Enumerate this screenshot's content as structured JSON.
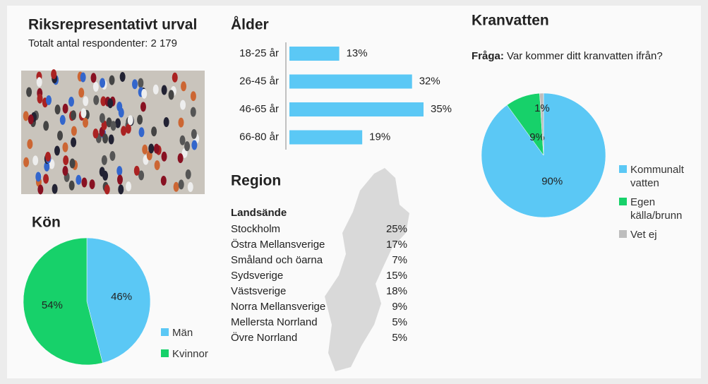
{
  "header": {
    "title": "Riksrepresentativt urval",
    "subtitle": "Totalt antal respondenter: 2 179"
  },
  "region": {
    "title": "Region",
    "column_title": "Landsände",
    "rows": [
      [
        "Stockholm",
        "25%"
      ],
      [
        "Östra Mellansverige",
        "17%"
      ],
      [
        "Småland och öarna",
        "7%"
      ],
      [
        "Sydsverige",
        "15%"
      ],
      [
        "Västsverige",
        "18%"
      ],
      [
        "Norra Mellansverige",
        "9%"
      ],
      [
        "Mellersta Norrland",
        "5%"
      ],
      [
        "Övre Norrland",
        "5%"
      ]
    ]
  },
  "chart_data": [
    {
      "type": "bar",
      "title": "Ålder",
      "categories": [
        "18-25 år",
        "26-45 år",
        "46-65 år",
        "66-80 år"
      ],
      "values": [
        13,
        32,
        35,
        19
      ],
      "value_labels": [
        "13%",
        "32%",
        "35%",
        "19%"
      ],
      "color": "#5bc8f5"
    },
    {
      "type": "pie",
      "title": "Kön",
      "categories": [
        "Män",
        "Kvinnor"
      ],
      "values": [
        46,
        54
      ],
      "value_labels": [
        "46%",
        "54%"
      ],
      "colors": [
        "#5bc8f5",
        "#17d16a"
      ]
    },
    {
      "type": "pie",
      "title": "Kranvatten",
      "question_label": "Fråga:",
      "question": "Var kommer ditt kranvatten ifrån?",
      "categories": [
        "Kommunalt vatten",
        "Egen källa/brunn",
        "Vet ej"
      ],
      "values": [
        90,
        9,
        1
      ],
      "value_labels": [
        "90%",
        "9%",
        "1%"
      ],
      "colors": [
        "#5bc8f5",
        "#17d16a",
        "#bdbdbd"
      ]
    }
  ]
}
